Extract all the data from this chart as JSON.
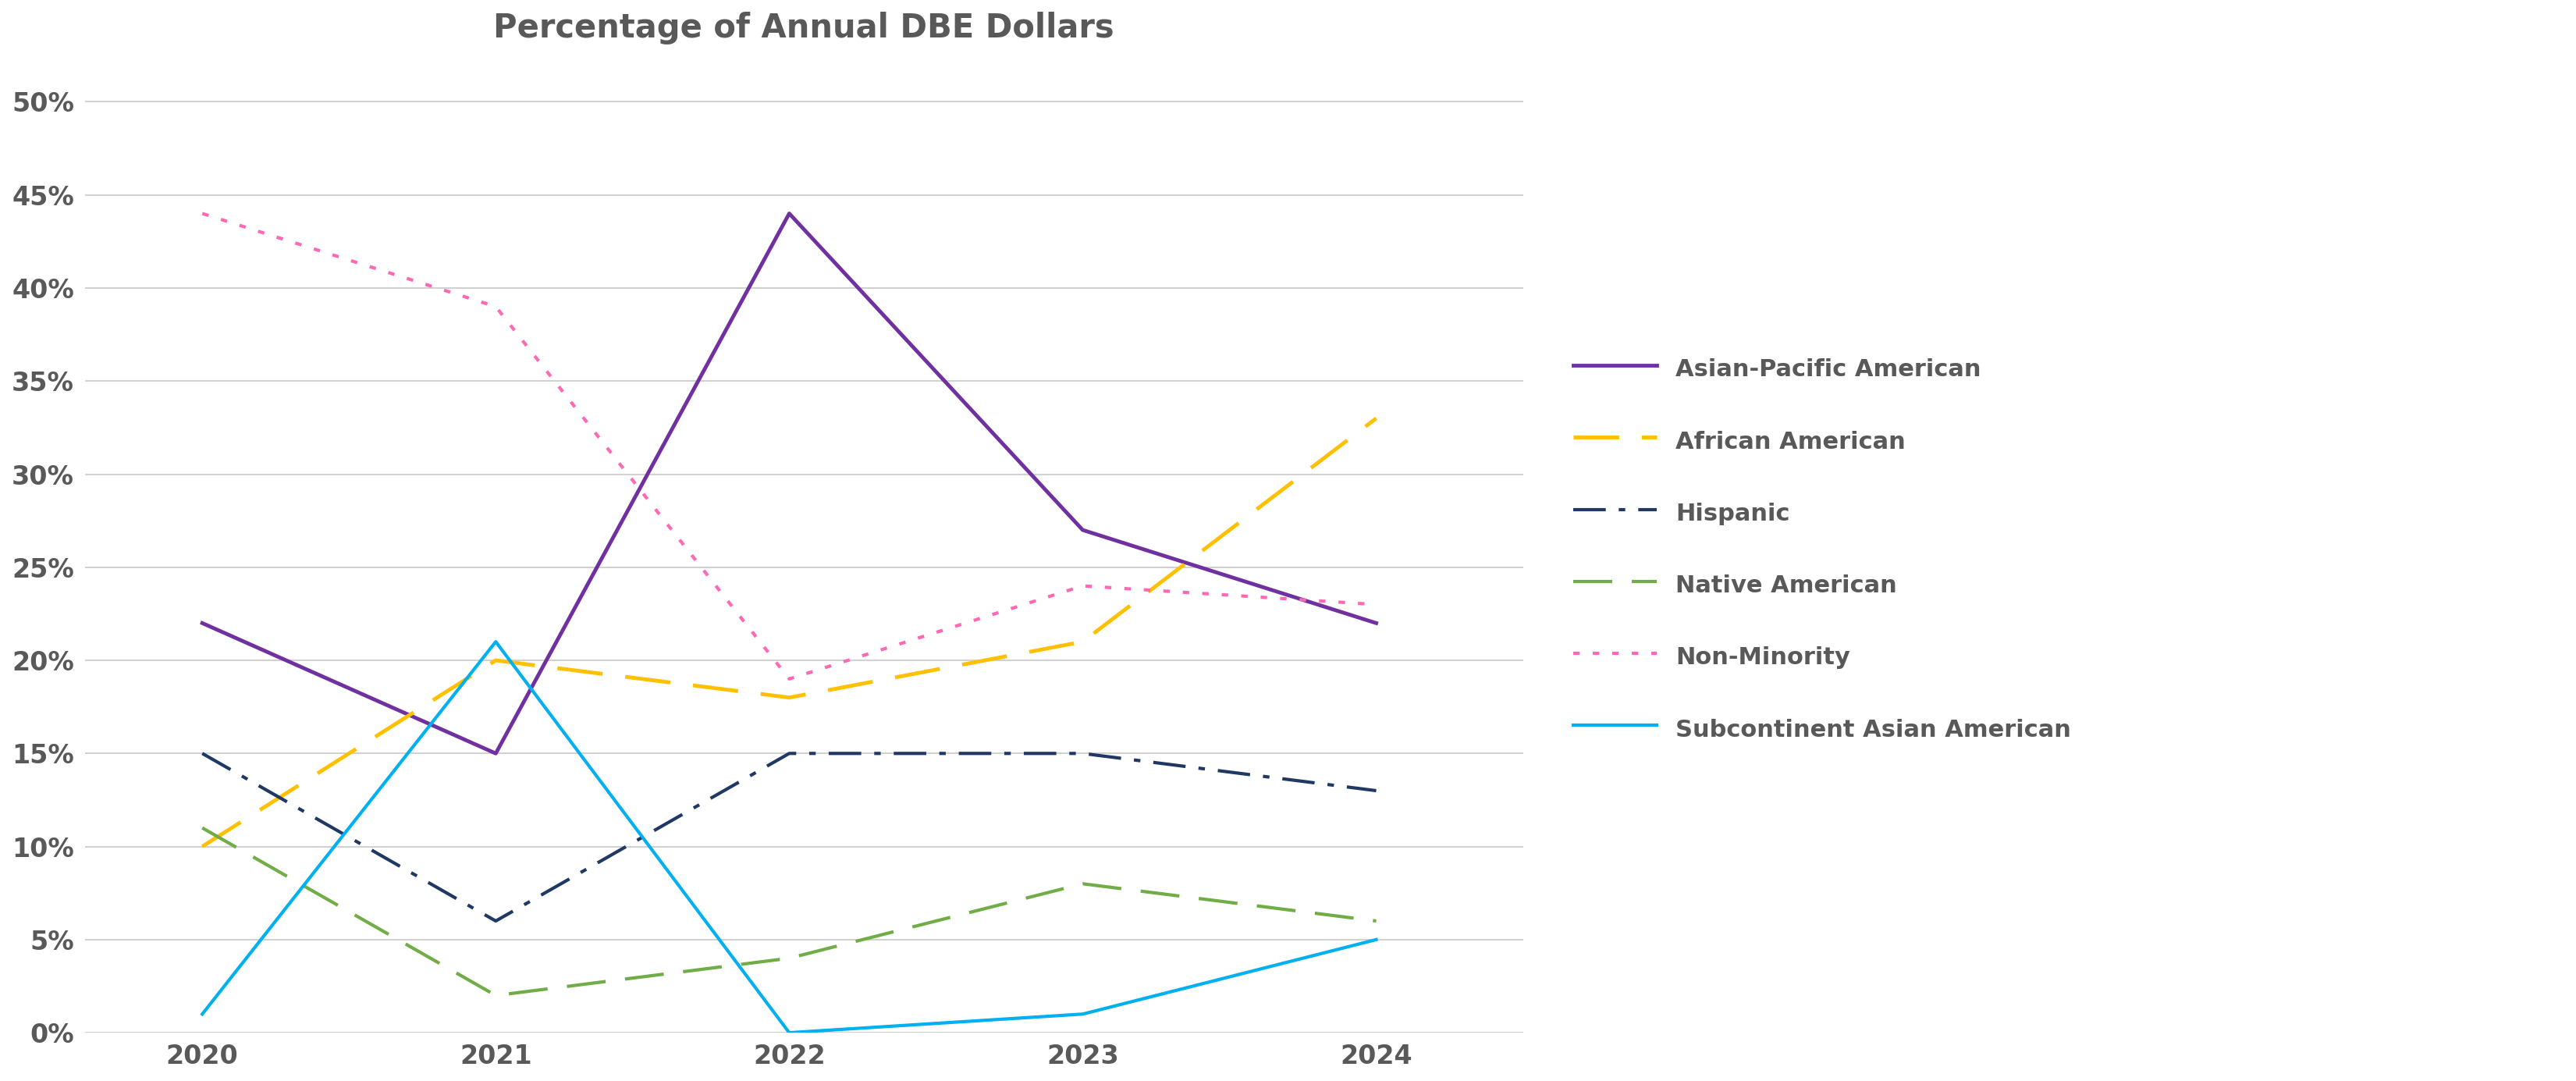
{
  "title": "Percentage of Annual DBE Dollars",
  "title_fontsize": 30,
  "title_fontweight": "bold",
  "title_color": "#595959",
  "background_color": "#ffffff",
  "x_values": [
    2020,
    2021,
    2022,
    2023,
    2024
  ],
  "series": [
    {
      "label": "Asian-Pacific American",
      "values": [
        22,
        15,
        44,
        27,
        22
      ],
      "color": "#7030A0",
      "linestyle": "solid",
      "linewidth": 3.5,
      "dashes": null
    },
    {
      "label": "African American",
      "values": [
        10,
        20,
        18,
        21,
        33
      ],
      "color": "#FFC000",
      "linestyle": "dashed",
      "linewidth": 3.5,
      "dashes": [
        12,
        6
      ]
    },
    {
      "label": "Hispanic",
      "values": [
        15,
        6,
        15,
        15,
        13
      ],
      "color": "#1F3864",
      "linestyle": "dashdot",
      "linewidth": 3.0,
      "dashes": [
        10,
        4,
        2,
        4
      ]
    },
    {
      "label": "Native American",
      "values": [
        11,
        2,
        4,
        8,
        6
      ],
      "color": "#70AD47",
      "linestyle": "dashed",
      "linewidth": 3.0,
      "dashes": [
        12,
        6
      ]
    },
    {
      "label": "Non-Minority",
      "values": [
        44,
        39,
        19,
        24,
        23
      ],
      "color": "#FF69B4",
      "linestyle": "dotted",
      "linewidth": 3.0,
      "dashes": [
        2,
        4
      ]
    },
    {
      "label": "Subcontinent Asian American",
      "values": [
        1,
        21,
        0,
        1,
        5
      ],
      "color": "#00B0F0",
      "linestyle": "solid",
      "linewidth": 3.0,
      "dashes": null
    }
  ],
  "ylim": [
    0,
    52
  ],
  "yticks": [
    0,
    5,
    10,
    15,
    20,
    25,
    30,
    35,
    40,
    45,
    50
  ],
  "xlim_left": 2019.6,
  "xlim_right": 2024.5,
  "grid_color": "#c8c8c8",
  "grid_linewidth": 1.2,
  "tick_label_color": "#595959",
  "tick_fontsize": 24,
  "legend_fontsize": 22,
  "legend_label_color": "#595959"
}
